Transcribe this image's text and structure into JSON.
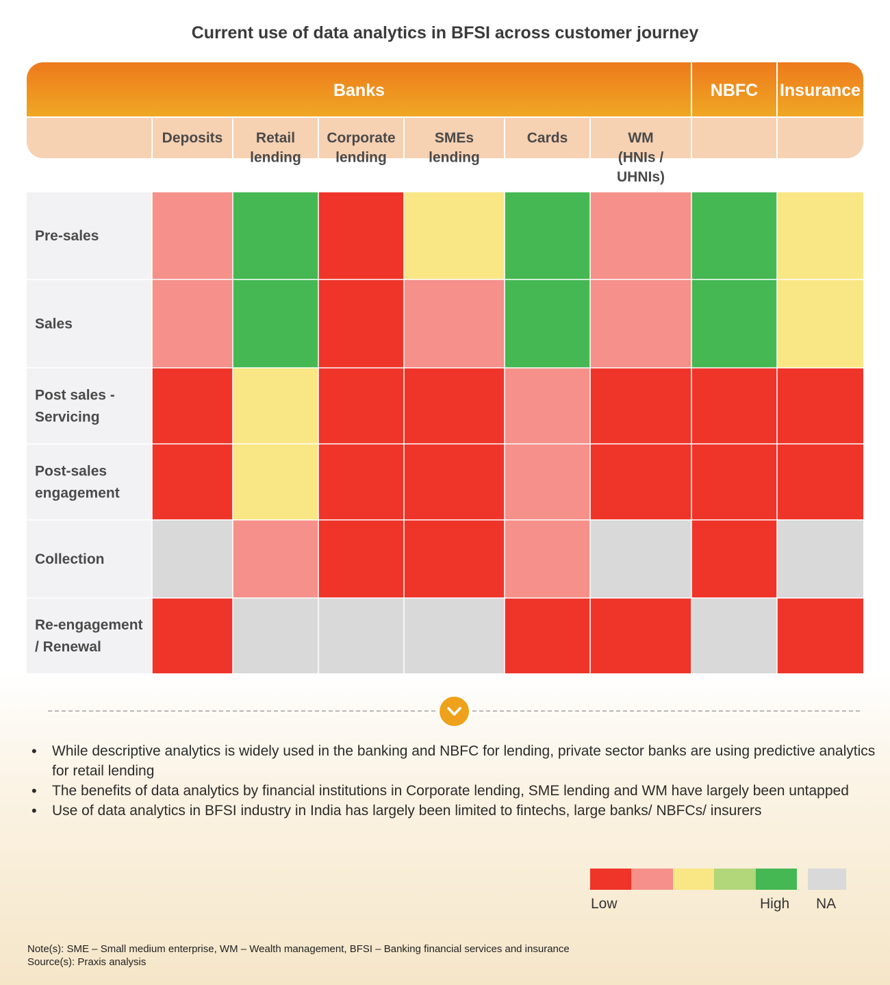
{
  "chart_data": {
    "type": "heatmap",
    "title": "Current use of data analytics in BFSI across customer journey",
    "groups": [
      {
        "label": "Banks",
        "span": 6
      },
      {
        "label": "NBFC",
        "span": 1
      },
      {
        "label": "Insurance",
        "span": 1
      }
    ],
    "columns": [
      "Deposits",
      "Retail lending",
      "Corporate lending",
      "SMEs lending",
      "Cards",
      "WM (HNIs / UHNIs)",
      "",
      ""
    ],
    "column_lines": [
      [
        "Deposits"
      ],
      [
        "Retail",
        "lending"
      ],
      [
        "Corporate",
        "lending"
      ],
      [
        "SMEs",
        "lending"
      ],
      [
        "Cards"
      ],
      [
        "WM",
        "(HNIs /",
        "UHNIs)"
      ],
      [],
      []
    ],
    "rows": [
      {
        "label": "Pre-sales",
        "lines": [
          "Pre-sales"
        ],
        "values": [
          2,
          5,
          1,
          3,
          5,
          2,
          5,
          3
        ]
      },
      {
        "label": "Sales",
        "lines": [
          "Sales"
        ],
        "values": [
          2,
          5,
          1,
          2,
          5,
          2,
          5,
          3
        ]
      },
      {
        "label": "Post sales - Servicing",
        "lines": [
          "Post sales -",
          "Servicing"
        ],
        "values": [
          1,
          3,
          1,
          1,
          2,
          1,
          1,
          1
        ]
      },
      {
        "label": "Post-sales engagement",
        "lines": [
          "Post-sales",
          "engagement"
        ],
        "values": [
          1,
          3,
          1,
          1,
          2,
          1,
          1,
          1
        ]
      },
      {
        "label": "Collection",
        "lines": [
          "Collection"
        ],
        "values": [
          0,
          2,
          1,
          1,
          2,
          0,
          1,
          0
        ]
      },
      {
        "label": "Re-engagement / Renewal",
        "lines": [
          "Re-engagement",
          "/ Renewal"
        ],
        "values": [
          1,
          0,
          0,
          0,
          1,
          1,
          0,
          1
        ]
      }
    ],
    "scale": {
      "levels": [
        1,
        2,
        3,
        4,
        5
      ],
      "na_value": 0,
      "low_label": "Low",
      "high_label": "High",
      "na_label": "NA"
    }
  },
  "colors": {
    "level_1": "#ef342a",
    "level_2": "#f5908a",
    "level_3": "#f9e684",
    "level_4": "#b2d67a",
    "level_5": "#45b853",
    "na": "#d9d9d9",
    "header_top": "#ed7a1c",
    "header_bottom": "#efa824",
    "subheader": "#f6d1b2",
    "row_label_bg": "#f2f2f4"
  },
  "bullets": [
    "While descriptive analytics is widely used in the banking and NBFC for lending, private sector banks are using predictive analytics for retail lending",
    "The benefits of data analytics by financial institutions in Corporate lending, SME lending and WM have largely been untapped",
    "Use of data analytics in BFSI industry in India has largely been limited to fintechs, large banks/ NBFCs/ insurers"
  ],
  "notes": {
    "note": "Note(s): SME – Small medium enterprise, WM – Wealth management, BFSI – Banking financial services and insurance",
    "source": "Source(s): Praxis analysis"
  }
}
